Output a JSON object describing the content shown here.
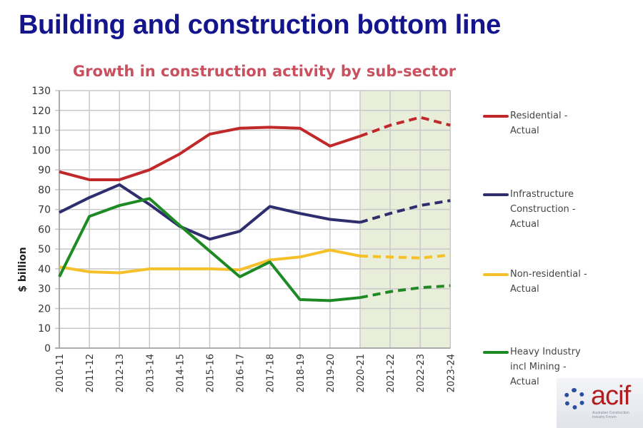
{
  "slide": {
    "title": "Building and construction bottom line"
  },
  "logo": {
    "word": "acif",
    "subtitle": "Australian Construction Industry Forum"
  },
  "chart_data": {
    "type": "line",
    "title": "Growth in construction activity by sub-sector",
    "xlabel": "",
    "ylabel": "$ billion",
    "ylim": [
      0,
      130
    ],
    "yticks": [
      0,
      10,
      20,
      30,
      40,
      50,
      60,
      70,
      80,
      90,
      100,
      110,
      120,
      130
    ],
    "grid": true,
    "legend_position": "right",
    "categories": [
      "2010-11",
      "2011-12",
      "2012-13",
      "2013-14",
      "2014-15",
      "2015-16",
      "2016-17",
      "2017-18",
      "2018-19",
      "2019-20",
      "2020-21",
      "2021-22",
      "2022-23",
      "2023-24"
    ],
    "forecast_start_index": 10,
    "forecast_region": {
      "from": "2020-21",
      "to": "2023-24",
      "color": "#e9eedb"
    },
    "series": [
      {
        "name": "Residential - Actual",
        "color": "#c0282a",
        "values": [
          89,
          85,
          85,
          90,
          98,
          108,
          111,
          111.5,
          111,
          102,
          107,
          112.5,
          116.5,
          112.5
        ]
      },
      {
        "name": "Infrastructure Construction - Actual",
        "color": "#2e2d6e",
        "values": [
          68.5,
          76,
          82.5,
          72.5,
          61.5,
          55,
          59,
          71.5,
          68,
          65,
          63.5,
          68,
          72,
          74.5
        ]
      },
      {
        "name": "Non-residential - Actual",
        "color": "#f5c02a",
        "values": [
          41,
          38.5,
          38,
          40,
          40,
          40,
          39.5,
          44.5,
          46,
          49.5,
          46.5,
          46,
          45.5,
          47
        ]
      },
      {
        "name": "Heavy Industry incl Mining - Actual",
        "color": "#1e8a24",
        "values": [
          36,
          66.5,
          72,
          75.5,
          62,
          49,
          36,
          43.5,
          24.5,
          24,
          25.5,
          28.5,
          30.5,
          31.5
        ]
      }
    ]
  }
}
